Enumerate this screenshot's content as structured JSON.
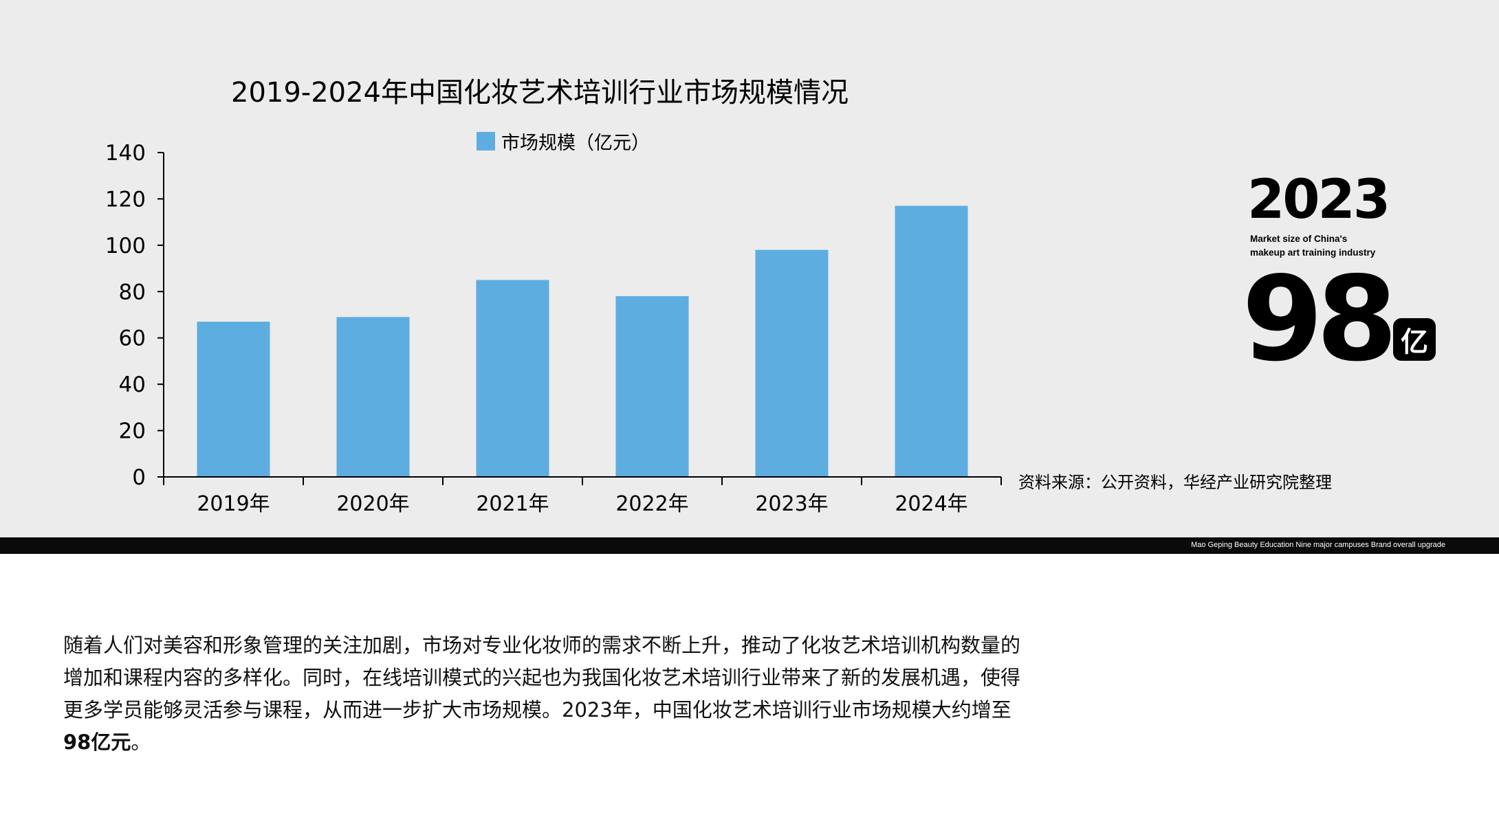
{
  "chart_data": {
    "type": "bar",
    "title": "2019-2024年中国化妆艺术培训行业市场规模情况",
    "categories": [
      "2019年",
      "2020年",
      "2021年",
      "2022年",
      "2023年",
      "2024年"
    ],
    "series": [
      {
        "name": "市场规模（亿元）",
        "values": [
          67,
          69,
          85,
          78,
          98,
          117
        ],
        "color": "#5dade0"
      }
    ],
    "ylim": [
      0,
      140
    ],
    "yticks": [
      0,
      20,
      40,
      60,
      80,
      100,
      120,
      140
    ],
    "xlabel": "",
    "ylabel": "",
    "grid": false,
    "legend": "top-center"
  },
  "source_note": "资料来源：公开资料，华经产业研究院整理",
  "kpi": {
    "year": "2023",
    "subtitle_line1": "Market size of China's",
    "subtitle_line2": "makeup art training industry",
    "value": "98",
    "unit": "亿"
  },
  "band_text": "Mao Geping Beauty Education Nine major campuses Brand overall upgrade",
  "paragraph": {
    "text_main": "随着人们对美容和形象管理的关注加剧，市场对专业化妆师的需求不断上升，推动了化妆艺术培训机构数量的增加和课程内容的多样化。同时，在线培训模式的兴起也为我国化妆艺术培训行业带来了新的发展机遇，使得更多学员能够灵活参与课程，从而进一步扩大市场规模。2023年，中国化妆艺术培训行业市场规模大约增至",
    "text_bold": "98亿元",
    "text_end": "。"
  },
  "colors": {
    "bar": "#5dade0",
    "panel_bg": "#ececec",
    "band": "#0a0a0a"
  }
}
